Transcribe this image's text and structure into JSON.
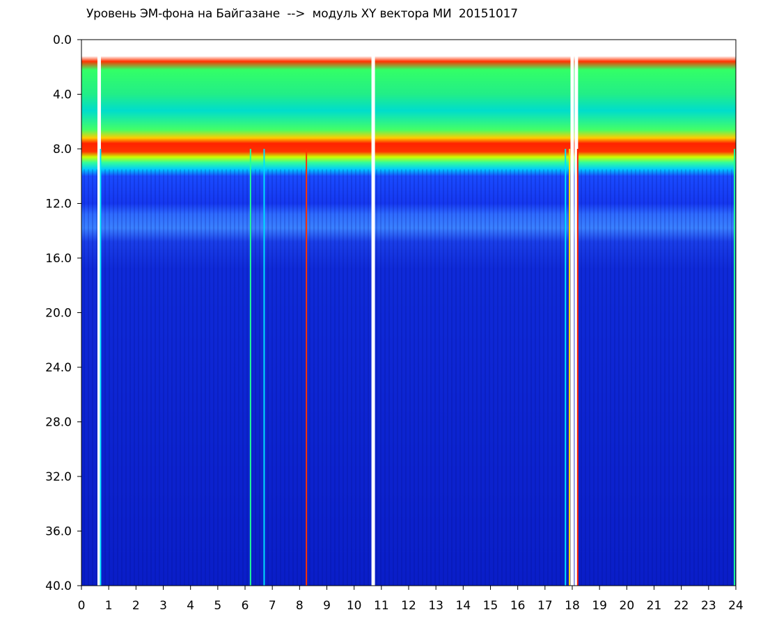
{
  "chart_data": {
    "type": "heatmap",
    "title": "Уровень ЭМ-фона на Байгазане  -->  модуль XY вектора МИ  20151017",
    "xlabel": "",
    "ylabel": "",
    "xlim": [
      0,
      24
    ],
    "ylim": [
      0.0,
      40.0
    ],
    "y_inverted": true,
    "x_ticks": [
      "0",
      "1",
      "2",
      "3",
      "4",
      "5",
      "6",
      "7",
      "8",
      "9",
      "10",
      "11",
      "12",
      "13",
      "14",
      "15",
      "16",
      "17",
      "18",
      "19",
      "20",
      "21",
      "22",
      "23",
      "24"
    ],
    "y_ticks": [
      "0.0",
      "4.0",
      "8.0",
      "12.0",
      "16.0",
      "20.0",
      "24.0",
      "28.0",
      "32.0",
      "36.0",
      "40.0"
    ],
    "grid": false,
    "colormap": [
      "#0a1fc8",
      "#1a4bff",
      "#00c8ff",
      "#22ff99",
      "#ccff00",
      "#ff2a00"
    ],
    "bands": [
      {
        "y_from": 1.5,
        "y_to": 7.0,
        "level": "green-cyan"
      },
      {
        "y_from": 7.0,
        "y_to": 8.5,
        "level": "red-yellow"
      },
      {
        "y_from": 8.5,
        "y_to": 9.8,
        "level": "cyan-blue"
      },
      {
        "y_from": 12.5,
        "y_to": 14.8,
        "level": "light-blue"
      },
      {
        "y_from": 14.8,
        "y_to": 40.0,
        "level": "dark-blue"
      }
    ],
    "gaps_hours": [
      0.65,
      10.7,
      18.0,
      18.15
    ],
    "streaks_hours": [
      {
        "x": 0.7,
        "color": "#00e0ff"
      },
      {
        "x": 6.2,
        "color": "#22ff99"
      },
      {
        "x": 6.7,
        "color": "#00e0ff"
      },
      {
        "x": 8.25,
        "color": "#ff3300"
      },
      {
        "x": 17.75,
        "color": "#00e0ff"
      },
      {
        "x": 17.9,
        "color": "#ffdd00"
      },
      {
        "x": 18.2,
        "color": "#ff2200"
      },
      {
        "x": 23.95,
        "color": "#22ff99"
      }
    ]
  }
}
